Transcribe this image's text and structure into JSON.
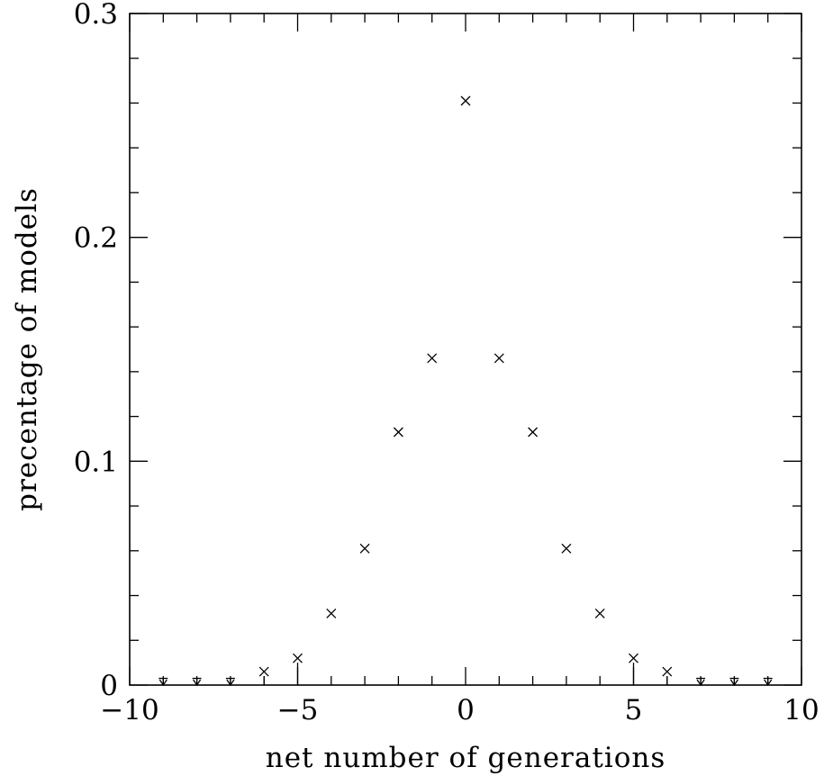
{
  "chart_data": {
    "type": "scatter",
    "title": "",
    "xlabel": "net number of generations",
    "ylabel": "precentage of models",
    "xlim": [
      -10,
      10
    ],
    "ylim": [
      0,
      0.3
    ],
    "x_ticks": [
      -10,
      -5,
      0,
      5,
      10
    ],
    "x_tick_labels": [
      "−10",
      "−5",
      "0",
      "5",
      "10"
    ],
    "y_ticks": [
      0,
      0.1,
      0.2,
      0.3
    ],
    "y_tick_labels": [
      "0",
      "0.1",
      "0.2",
      "0.3"
    ],
    "x_minor_step": 1,
    "y_minor_step": 0.02,
    "grid": false,
    "series": [
      {
        "marker": "x",
        "points": [
          {
            "x": -6,
            "y": 0.006
          },
          {
            "x": -5,
            "y": 0.012
          },
          {
            "x": -4,
            "y": 0.032
          },
          {
            "x": -3,
            "y": 0.061
          },
          {
            "x": -2,
            "y": 0.113
          },
          {
            "x": -1,
            "y": 0.146
          },
          {
            "x": 0,
            "y": 0.261
          },
          {
            "x": 1,
            "y": 0.146
          },
          {
            "x": 2,
            "y": 0.113
          },
          {
            "x": 3,
            "y": 0.061
          },
          {
            "x": 4,
            "y": 0.032
          },
          {
            "x": 5,
            "y": 0.012
          },
          {
            "x": 6,
            "y": 0.006
          }
        ]
      },
      {
        "marker": "upper-limit-arrow",
        "points": [
          {
            "x": -9,
            "y": 0.003
          },
          {
            "x": -8,
            "y": 0.003
          },
          {
            "x": -7,
            "y": 0.003
          },
          {
            "x": 7,
            "y": 0.003
          },
          {
            "x": 8,
            "y": 0.003
          },
          {
            "x": 9,
            "y": 0.003
          }
        ]
      }
    ]
  }
}
